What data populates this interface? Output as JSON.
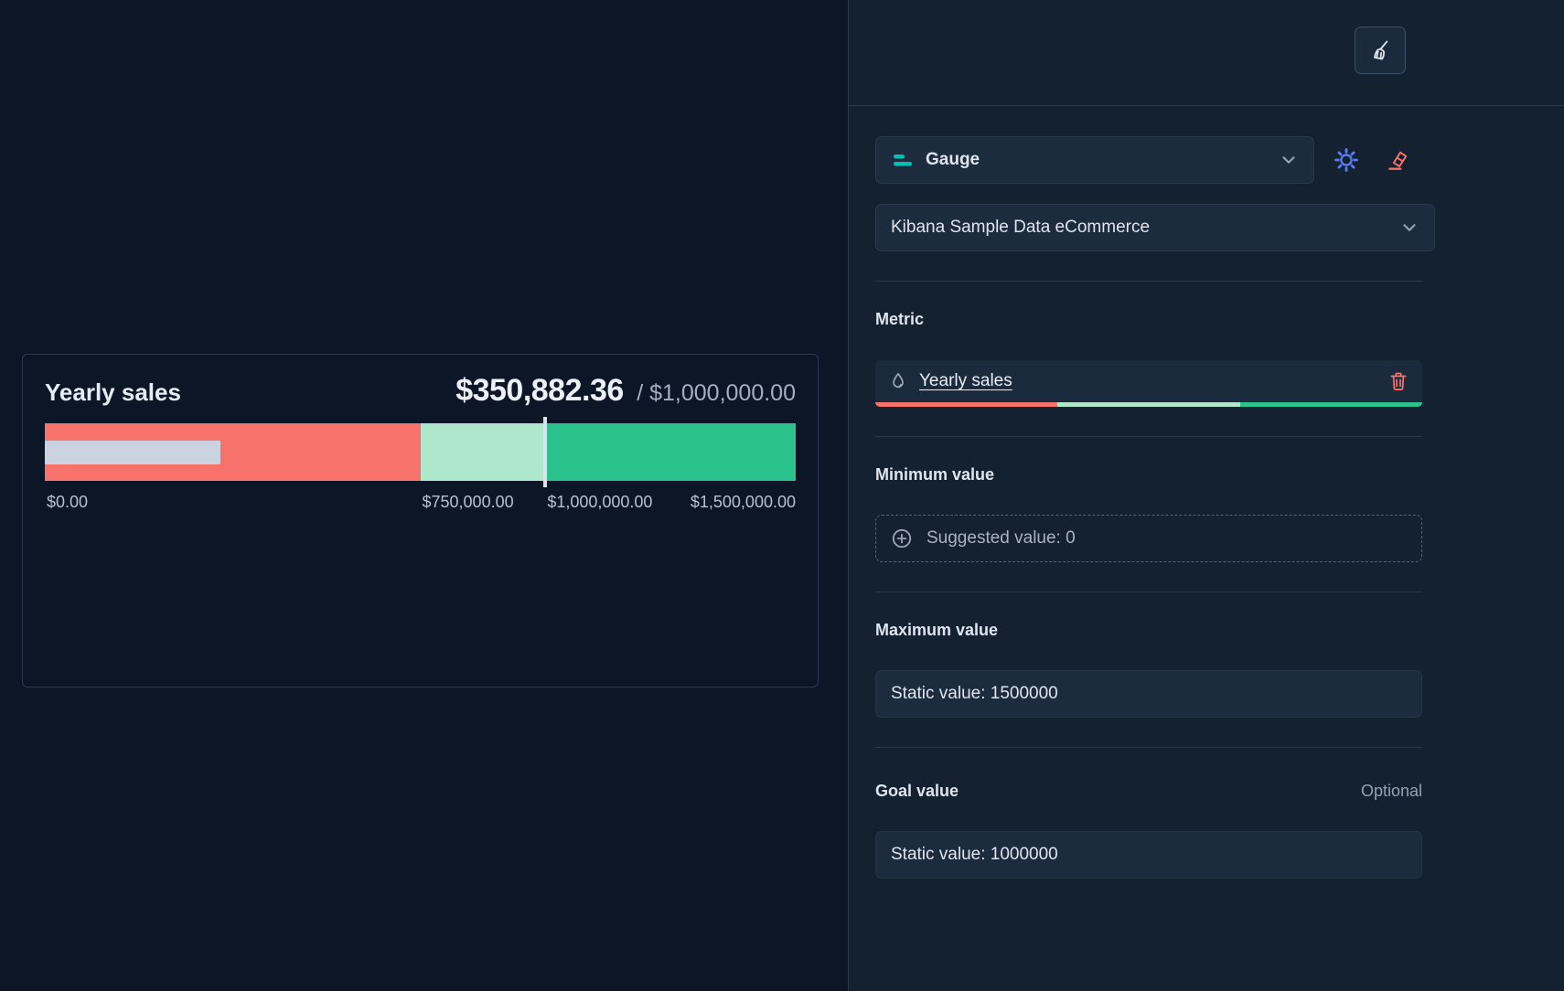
{
  "theme": {
    "page_bg": "#0D1626",
    "panel_bg": "#142130",
    "control_bg": "#1C2B3E",
    "divider": "#28394F",
    "text_primary": "#DFE5EF",
    "text_secondary": "#95A0B5",
    "teal": "#00BFB3",
    "blue": "#5C7DF2",
    "danger": "#F6726A"
  },
  "gauge_card": {
    "title": "Yearly sales",
    "value": "$350,882.36",
    "target": "/ $1,000,000.00"
  },
  "chart_data": {
    "type": "bullet-gauge",
    "title": "Yearly sales",
    "value": 350882.36,
    "value_label": "$350,882.36",
    "goal": 1000000,
    "goal_label": "$1,000,000.00",
    "min": 0,
    "max": 1500000,
    "value_bar_color": "#CBD3E0",
    "bands": [
      {
        "from": 0,
        "to": 750000,
        "color": "#F6726A"
      },
      {
        "from": 750000,
        "to": 1000000,
        "color": "#AFE7CC"
      },
      {
        "from": 1000000,
        "to": 1500000,
        "color": "#2BC28E"
      }
    ],
    "ticks": [
      {
        "value": 0,
        "label": "$0.00"
      },
      {
        "value": 750000,
        "label": "$750,000.00"
      },
      {
        "value": 1000000,
        "label": "$1,000,000.00"
      },
      {
        "value": 1500000,
        "label": "$1,500,000.00"
      }
    ]
  },
  "flyout": {
    "chart_type": {
      "label": "Gauge"
    },
    "dataset": {
      "value": "Kibana Sample Data eCommerce"
    },
    "metric": {
      "heading": "Metric",
      "field": "Yearly sales"
    },
    "minimum": {
      "heading": "Minimum value",
      "suggestion": "Suggested value: 0"
    },
    "maximum": {
      "heading": "Maximum value",
      "value": "Static value: 1500000"
    },
    "goal": {
      "heading": "Goal value",
      "optional": "Optional",
      "value": "Static value: 1000000"
    }
  }
}
